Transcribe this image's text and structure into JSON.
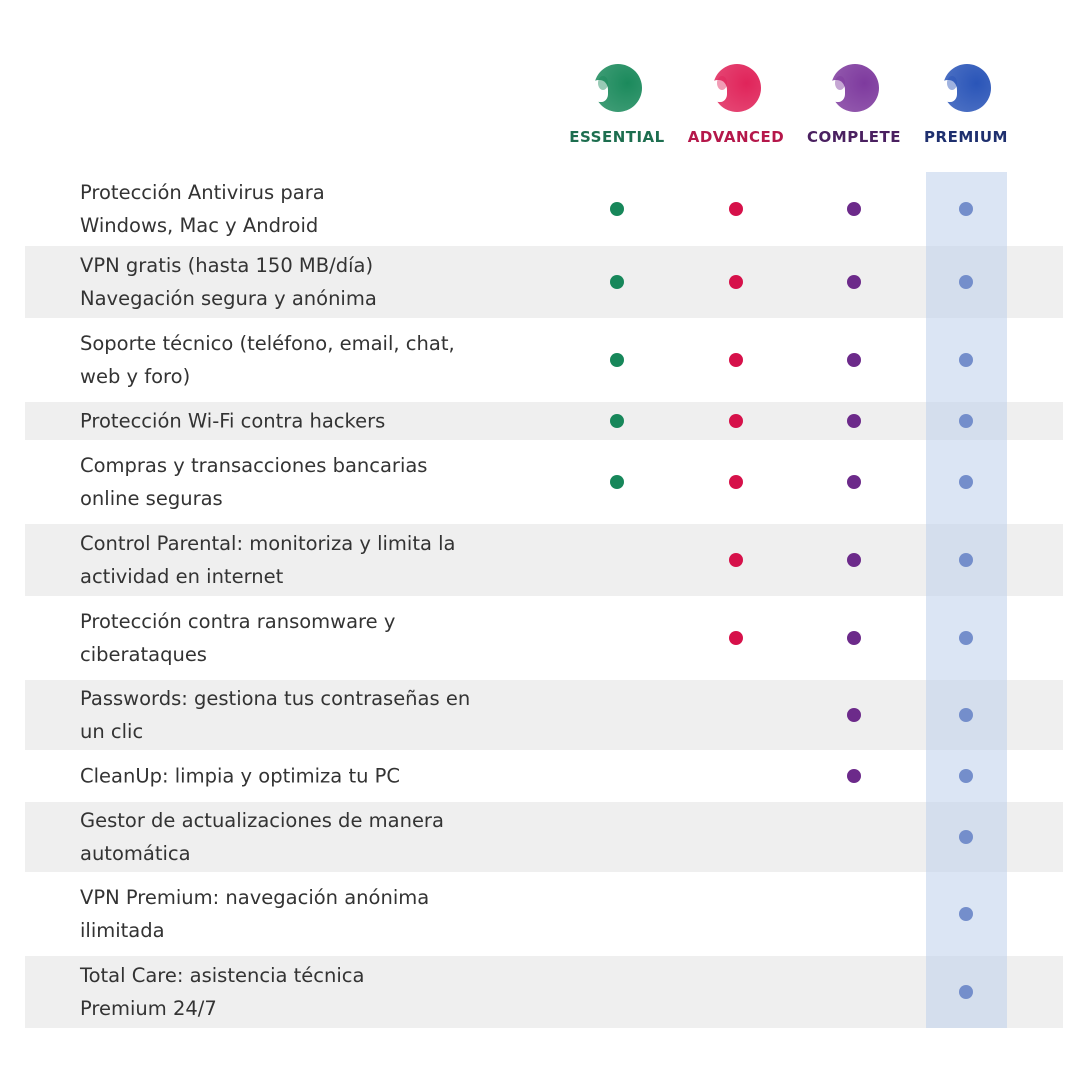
{
  "plans": [
    {
      "name": "ESSENTIAL",
      "color": "#1b8a5c",
      "text_color": "#1d6e4f",
      "icon": "shield-logo-icon"
    },
    {
      "name": "ADVANCED",
      "color": "#e0245a",
      "text_color": "#b5174a",
      "icon": "shield-logo-icon"
    },
    {
      "name": "COMPLETE",
      "color": "#7e3a9e",
      "text_color": "#4a2060",
      "icon": "shield-logo-icon"
    },
    {
      "name": "PREMIUM",
      "color": "#2a55b8",
      "text_color": "#1e2f6e",
      "icon": "shield-logo-icon"
    }
  ],
  "dot_colors": [
    "#17875a",
    "#d6114a",
    "#6c2a8a",
    "#1b3fa5"
  ],
  "features": [
    {
      "lines": [
        "Protección Antivirus para",
        "Windows, Mac y Android"
      ],
      "included": [
        true,
        true,
        true,
        true
      ]
    },
    {
      "lines": [
        "VPN gratis (hasta 150 MB/día)",
        "Navegación segura y anónima"
      ],
      "included": [
        true,
        true,
        true,
        true
      ]
    },
    {
      "lines": [
        "Soporte técnico (teléfono, email, chat,",
        "web y foro)"
      ],
      "included": [
        true,
        true,
        true,
        true
      ]
    },
    {
      "lines": [
        "Protección Wi-Fi contra hackers"
      ],
      "included": [
        true,
        true,
        true,
        true
      ]
    },
    {
      "lines": [
        "Compras y transacciones bancarias",
        "online seguras"
      ],
      "included": [
        true,
        true,
        true,
        true
      ]
    },
    {
      "lines": [
        "Control Parental: monitoriza y limita la",
        "actividad en internet"
      ],
      "included": [
        false,
        true,
        true,
        true
      ]
    },
    {
      "lines": [
        "Protección contra ransomware y",
        "ciberataques"
      ],
      "included": [
        false,
        true,
        true,
        true
      ]
    },
    {
      "lines": [
        "Passwords: gestiona tus contraseñas en",
        "un clic"
      ],
      "included": [
        false,
        false,
        true,
        true
      ]
    },
    {
      "lines": [
        "CleanUp: limpia y optimiza tu PC"
      ],
      "included": [
        false,
        false,
        true,
        true
      ]
    },
    {
      "lines": [
        "Gestor de actualizaciones de manera",
        "automática"
      ],
      "included": [
        false,
        false,
        false,
        true
      ]
    },
    {
      "lines": [
        "VPN Premium: navegación anónima",
        "ilimitada"
      ],
      "included": [
        false,
        false,
        false,
        true
      ]
    },
    {
      "lines": [
        "Total Care: asistencia técnica",
        "Premium 24/7"
      ],
      "included": [
        false,
        false,
        false,
        true
      ]
    }
  ]
}
